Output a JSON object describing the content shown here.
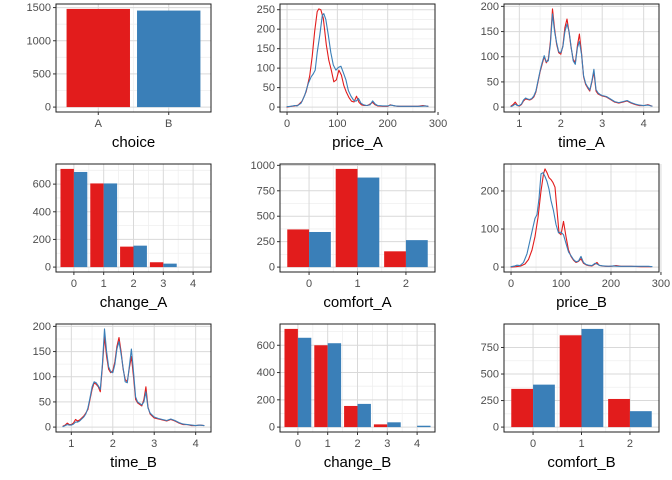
{
  "figure": {
    "background": "#ffffff",
    "description": "3x3 grid of distribution plots comparing two groups (red vs blue)"
  },
  "colors": {
    "red": "#e21c1c",
    "blue": "#3a7fb8",
    "grid_major": "#d9d9d9",
    "grid_minor": "#efefef",
    "panel_border": "#1f1f1f",
    "tick_mark": "#333333",
    "tick_label": "#4d4d4d",
    "axis_title": "#000000",
    "panel_bg": "#ffffff"
  },
  "chart_data": [
    {
      "id": "choice",
      "type": "bar",
      "mode": "single",
      "xlabel": "choice",
      "categories": [
        "A",
        "B"
      ],
      "values": [
        1480,
        1455
      ],
      "bar_colors": [
        "red",
        "blue"
      ],
      "yticks": [
        0,
        500,
        1000,
        1500
      ],
      "ylim_max": 1480
    },
    {
      "id": "price_A",
      "type": "line",
      "xlabel": "price_A",
      "xticks": [
        0,
        100,
        200,
        300
      ],
      "yticks": [
        0,
        50,
        100,
        150,
        200,
        250
      ],
      "series": [
        {
          "color": "red",
          "x": [
            0,
            8,
            15,
            22,
            30,
            38,
            45,
            50,
            55,
            60,
            63,
            67,
            72,
            78,
            83,
            88,
            93,
            98,
            103,
            108,
            113,
            118,
            123,
            128,
            133,
            138,
            143,
            148,
            153,
            160,
            165,
            170,
            175,
            180,
            190,
            200,
            205,
            210,
            220,
            230,
            240,
            250,
            260,
            270,
            275,
            280
          ],
          "y": [
            0,
            2,
            3,
            5,
            15,
            40,
            80,
            130,
            195,
            245,
            252,
            250,
            228,
            160,
            120,
            95,
            65,
            70,
            95,
            82,
            55,
            38,
            25,
            15,
            13,
            28,
            12,
            6,
            4,
            4,
            8,
            12,
            6,
            3,
            2,
            2,
            6,
            4,
            2,
            2,
            2,
            2,
            2,
            4,
            3,
            2
          ]
        },
        {
          "color": "blue",
          "x": [
            0,
            8,
            15,
            20,
            28,
            35,
            42,
            48,
            52,
            56,
            60,
            65,
            70,
            73,
            77,
            82,
            87,
            92,
            97,
            102,
            107,
            112,
            117,
            122,
            127,
            132,
            137,
            142,
            147,
            152,
            158,
            165,
            170,
            175,
            180,
            190,
            200,
            207,
            215,
            225,
            235,
            245,
            255,
            265,
            275,
            280
          ],
          "y": [
            1,
            2,
            4,
            3,
            10,
            30,
            60,
            78,
            85,
            95,
            140,
            185,
            235,
            240,
            225,
            185,
            140,
            108,
            95,
            102,
            105,
            88,
            70,
            42,
            28,
            18,
            15,
            22,
            10,
            6,
            4,
            6,
            16,
            8,
            4,
            3,
            3,
            5,
            3,
            2,
            2,
            2,
            2,
            2,
            3,
            2
          ]
        }
      ]
    },
    {
      "id": "time_A",
      "type": "line",
      "xlabel": "time_A",
      "xticks": [
        1,
        2,
        3,
        4
      ],
      "yticks": [
        0,
        50,
        100,
        150,
        200
      ],
      "series": [
        {
          "color": "red",
          "x": [
            0.8,
            0.85,
            0.9,
            0.95,
            1.0,
            1.05,
            1.1,
            1.15,
            1.2,
            1.25,
            1.3,
            1.35,
            1.4,
            1.45,
            1.5,
            1.55,
            1.6,
            1.65,
            1.7,
            1.75,
            1.8,
            1.85,
            1.9,
            1.95,
            2.0,
            2.05,
            2.1,
            2.15,
            2.2,
            2.25,
            2.3,
            2.35,
            2.4,
            2.45,
            2.5,
            2.55,
            2.6,
            2.65,
            2.7,
            2.75,
            2.8,
            2.85,
            2.9,
            2.95,
            3.0,
            3.1,
            3.2,
            3.3,
            3.4,
            3.5,
            3.6,
            3.7,
            3.8,
            3.9,
            4.0,
            4.1,
            4.2
          ],
          "y": [
            2,
            5,
            10,
            4,
            2,
            5,
            12,
            16,
            15,
            14,
            16,
            20,
            30,
            50,
            70,
            85,
            100,
            88,
            95,
            130,
            195,
            155,
            125,
            108,
            105,
            122,
            158,
            175,
            148,
            118,
            95,
            88,
            122,
            145,
            108,
            60,
            45,
            38,
            32,
            50,
            70,
            32,
            26,
            24,
            22,
            20,
            15,
            10,
            8,
            10,
            12,
            8,
            5,
            3,
            3,
            5,
            2
          ]
        },
        {
          "color": "blue",
          "x": [
            0.8,
            0.85,
            0.9,
            0.95,
            1.0,
            1.05,
            1.1,
            1.15,
            1.2,
            1.25,
            1.3,
            1.35,
            1.4,
            1.45,
            1.5,
            1.55,
            1.6,
            1.65,
            1.7,
            1.75,
            1.8,
            1.85,
            1.9,
            1.95,
            2.0,
            2.05,
            2.1,
            2.15,
            2.2,
            2.25,
            2.3,
            2.35,
            2.4,
            2.45,
            2.5,
            2.55,
            2.6,
            2.65,
            2.7,
            2.75,
            2.8,
            2.85,
            2.9,
            2.95,
            3.0,
            3.1,
            3.2,
            3.3,
            3.4,
            3.5,
            3.6,
            3.7,
            3.8,
            3.9,
            4.0,
            4.1,
            4.2
          ],
          "y": [
            1,
            3,
            6,
            3,
            3,
            6,
            14,
            18,
            16,
            15,
            17,
            22,
            32,
            52,
            72,
            88,
            102,
            90,
            92,
            125,
            185,
            150,
            128,
            110,
            108,
            120,
            150,
            165,
            150,
            120,
            92,
            85,
            118,
            130,
            105,
            62,
            47,
            40,
            34,
            52,
            75,
            35,
            28,
            25,
            23,
            21,
            16,
            11,
            9,
            11,
            13,
            9,
            6,
            4,
            3,
            4,
            2
          ]
        }
      ]
    },
    {
      "id": "change_A",
      "type": "bar",
      "mode": "grouped",
      "xlabel": "change_A",
      "categories": [
        "0",
        "1",
        "2",
        "3",
        "4"
      ],
      "series": [
        {
          "color": "red",
          "values": [
            710,
            605,
            148,
            35,
            0
          ]
        },
        {
          "color": "blue",
          "values": [
            688,
            605,
            155,
            25,
            0
          ]
        }
      ],
      "yticks": [
        0,
        200,
        400,
        600
      ],
      "ylim_max": 710
    },
    {
      "id": "comfort_A",
      "type": "bar",
      "mode": "grouped",
      "xlabel": "comfort_A",
      "categories": [
        "0",
        "1",
        "2"
      ],
      "series": [
        {
          "color": "red",
          "values": [
            370,
            965,
            155
          ]
        },
        {
          "color": "blue",
          "values": [
            345,
            880,
            265
          ]
        }
      ],
      "yticks": [
        0,
        250,
        500,
        750,
        1000
      ],
      "ylim_max": 965
    },
    {
      "id": "price_B",
      "type": "line",
      "xlabel": "price_B",
      "xticks": [
        0,
        100,
        200,
        300
      ],
      "yticks": [
        0,
        100,
        200
      ],
      "series": [
        {
          "color": "red",
          "x": [
            0,
            10,
            20,
            28,
            35,
            42,
            48,
            54,
            60,
            65,
            68,
            72,
            76,
            80,
            84,
            88,
            92,
            96,
            100,
            105,
            110,
            115,
            120,
            125,
            130,
            135,
            140,
            145,
            150,
            155,
            162,
            168,
            172,
            176,
            182,
            190,
            200,
            210,
            220,
            240,
            260,
            280
          ],
          "y": [
            0,
            1,
            3,
            8,
            20,
            45,
            80,
            130,
            200,
            245,
            258,
            248,
            235,
            230,
            222,
            210,
            150,
            90,
            85,
            120,
            80,
            45,
            28,
            18,
            12,
            15,
            22,
            10,
            6,
            4,
            3,
            8,
            12,
            5,
            3,
            2,
            2,
            4,
            2,
            2,
            1,
            1
          ]
        },
        {
          "color": "blue",
          "x": [
            0,
            8,
            12,
            18,
            25,
            32,
            38,
            44,
            48,
            52,
            56,
            60,
            64,
            68,
            72,
            76,
            80,
            85,
            90,
            95,
            100,
            105,
            110,
            115,
            120,
            125,
            130,
            135,
            140,
            145,
            150,
            155,
            162,
            168,
            172,
            178,
            185,
            195,
            205,
            215,
            235,
            255,
            275,
            282
          ],
          "y": [
            1,
            3,
            5,
            4,
            12,
            35,
            70,
            105,
            128,
            138,
            180,
            245,
            248,
            238,
            225,
            205,
            175,
            148,
            112,
            90,
            92,
            85,
            62,
            40,
            30,
            20,
            14,
            16,
            28,
            12,
            7,
            5,
            4,
            10,
            8,
            4,
            3,
            2,
            3,
            2,
            2,
            2,
            2,
            1
          ]
        }
      ]
    },
    {
      "id": "time_B",
      "type": "line",
      "xlabel": "time_B",
      "xticks": [
        1,
        2,
        3,
        4
      ],
      "yticks": [
        0,
        50,
        100,
        150,
        200
      ],
      "series": [
        {
          "color": "red",
          "x": [
            0.8,
            0.85,
            0.9,
            0.95,
            1.0,
            1.05,
            1.1,
            1.15,
            1.2,
            1.25,
            1.3,
            1.35,
            1.4,
            1.45,
            1.5,
            1.55,
            1.6,
            1.65,
            1.7,
            1.75,
            1.8,
            1.85,
            1.9,
            1.95,
            2.0,
            2.05,
            2.1,
            2.15,
            2.2,
            2.25,
            2.3,
            2.35,
            2.4,
            2.45,
            2.5,
            2.55,
            2.6,
            2.65,
            2.7,
            2.75,
            2.8,
            2.85,
            2.9,
            2.95,
            3.0,
            3.1,
            3.2,
            3.3,
            3.4,
            3.5,
            3.6,
            3.7,
            3.8,
            3.9,
            4.0,
            4.1,
            4.2
          ],
          "y": [
            2,
            4,
            8,
            5,
            5,
            8,
            15,
            12,
            14,
            18,
            22,
            28,
            35,
            55,
            75,
            88,
            85,
            80,
            70,
            120,
            180,
            140,
            115,
            108,
            112,
            130,
            160,
            178,
            150,
            115,
            95,
            90,
            118,
            140,
            100,
            55,
            48,
            45,
            42,
            55,
            80,
            40,
            26,
            22,
            18,
            16,
            14,
            12,
            15,
            12,
            8,
            5,
            5,
            3,
            3,
            4,
            3
          ]
        },
        {
          "color": "blue",
          "x": [
            0.8,
            0.85,
            0.9,
            0.95,
            1.0,
            1.05,
            1.1,
            1.15,
            1.2,
            1.25,
            1.3,
            1.35,
            1.4,
            1.45,
            1.5,
            1.55,
            1.6,
            1.65,
            1.7,
            1.75,
            1.8,
            1.85,
            1.9,
            1.95,
            2.0,
            2.05,
            2.1,
            2.15,
            2.2,
            2.25,
            2.3,
            2.35,
            2.4,
            2.45,
            2.5,
            2.55,
            2.6,
            2.65,
            2.7,
            2.75,
            2.8,
            2.85,
            2.9,
            2.95,
            3.0,
            3.1,
            3.2,
            3.3,
            3.4,
            3.5,
            3.6,
            3.7,
            3.8,
            3.9,
            4.0,
            4.1,
            4.2
          ],
          "y": [
            1,
            3,
            5,
            4,
            4,
            6,
            10,
            10,
            12,
            16,
            20,
            26,
            38,
            58,
            80,
            90,
            88,
            82,
            75,
            125,
            195,
            150,
            120,
            110,
            108,
            125,
            155,
            170,
            145,
            118,
            90,
            88,
            122,
            155,
            110,
            60,
            50,
            47,
            44,
            50,
            70,
            38,
            28,
            24,
            20,
            17,
            15,
            13,
            16,
            13,
            9,
            6,
            5,
            4,
            3,
            4,
            3
          ]
        }
      ]
    },
    {
      "id": "change_B",
      "type": "bar",
      "mode": "grouped",
      "xlabel": "change_B",
      "categories": [
        "0",
        "1",
        "2",
        "3",
        "4"
      ],
      "series": [
        {
          "color": "red",
          "values": [
            720,
            600,
            155,
            20,
            0
          ]
        },
        {
          "color": "blue",
          "values": [
            655,
            615,
            170,
            35,
            10
          ]
        }
      ],
      "yticks": [
        0,
        200,
        400,
        600
      ],
      "ylim_max": 720
    },
    {
      "id": "comfort_B",
      "type": "bar",
      "mode": "grouped",
      "xlabel": "comfort_B",
      "categories": [
        "0",
        "1",
        "2"
      ],
      "series": [
        {
          "color": "red",
          "values": [
            360,
            865,
            265
          ]
        },
        {
          "color": "blue",
          "values": [
            400,
            925,
            150
          ]
        }
      ],
      "yticks": [
        0,
        250,
        500,
        750
      ],
      "ylim_max": 925
    }
  ]
}
